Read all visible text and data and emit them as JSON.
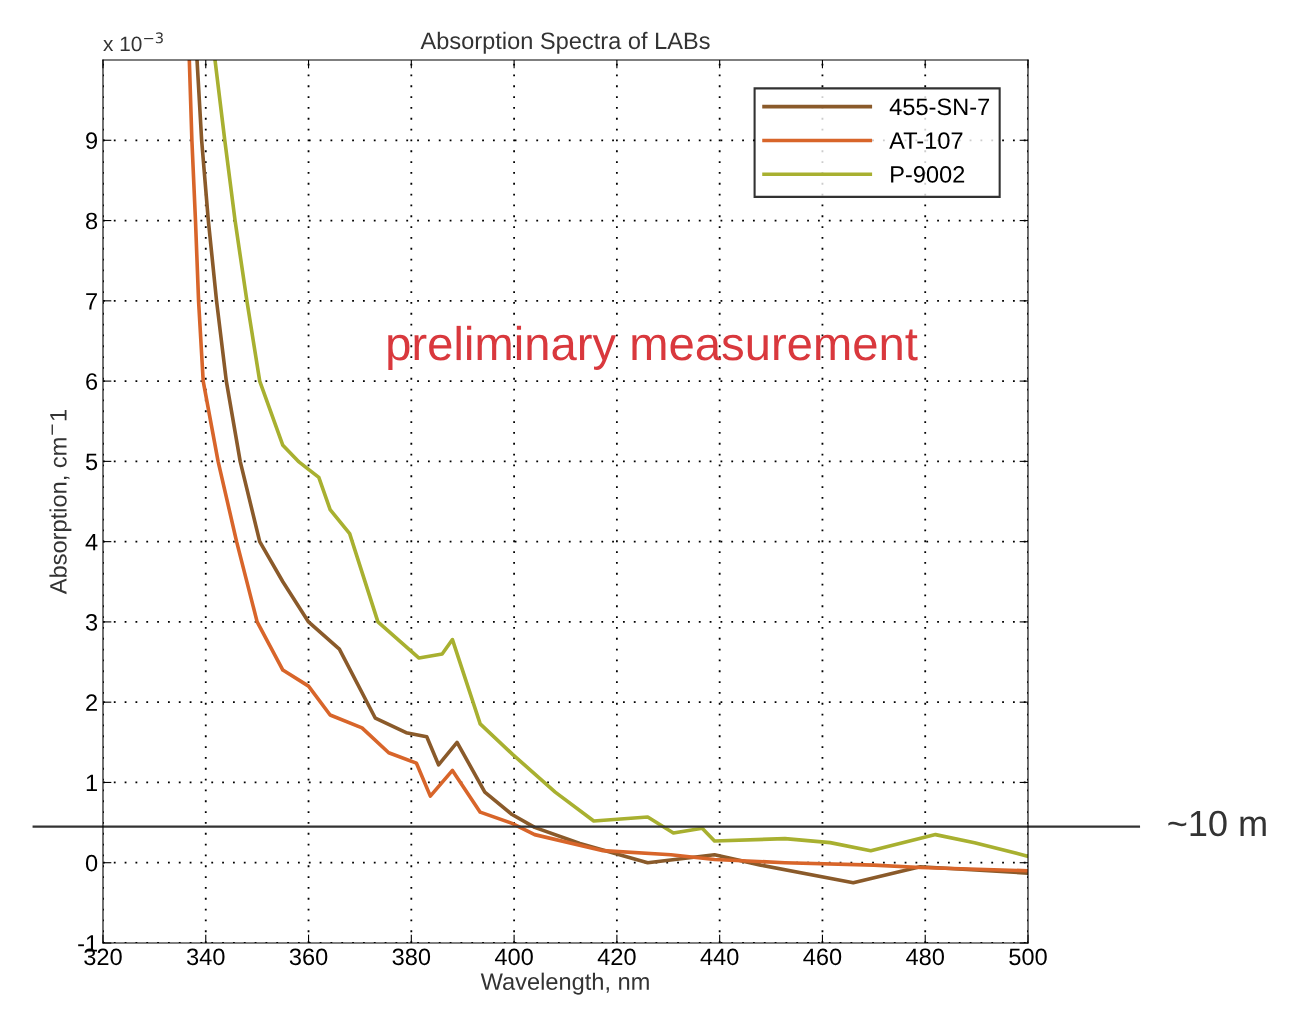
{
  "chart_data": {
    "type": "line",
    "title": "Absorption Spectra of LABs",
    "xlabel": "Wavelength, nm",
    "ylabel": "Absorption, cm$^{−}$1",
    "xlim": [
      320,
      500
    ],
    "xticks": [
      320,
      340,
      360,
      380,
      400,
      420,
      440,
      460,
      480,
      500
    ],
    "ylim": [
      -1,
      10
    ],
    "yticks": [
      -1,
      0,
      1,
      2,
      3,
      4,
      5,
      6,
      7,
      8,
      9
    ],
    "grid": true,
    "legend": "top right",
    "line_style": "solid",
    "marker": "none",
    "annotations": [
      "x 10$^{−3}$",
      "preliminary measurement"
    ],
    "ref_lines": [
      {
        "axis": "y",
        "value": 0.45,
        "label": "~10 m",
        "color": "#333333"
      }
    ],
    "series": [
      {
        "name": "455-SN-7",
        "color": "#8a5a2a",
        "x": [
          338.3,
          339.2,
          340.5,
          342.1,
          344,
          346.7,
          350.5,
          355,
          360,
          366,
          373,
          379,
          383,
          385.3,
          388.9,
          394.3,
          399.6,
          404,
          412.8,
          426,
          439,
          448,
          466,
          479,
          500
        ],
        "values": [
          10,
          9,
          8,
          7,
          6,
          5,
          4,
          3.5,
          3.0,
          2.66,
          1.8,
          1.62,
          1.57,
          1.22,
          1.5,
          0.88,
          0.6,
          0.44,
          0.24,
          0.0,
          0.1,
          -0.03,
          -0.25,
          -0.05,
          -0.13
        ]
      },
      {
        "name": "AT-107",
        "color": "#d8652a",
        "x": [
          336.8,
          337.3,
          338,
          338.6,
          339.5,
          342.4,
          346,
          350,
          355,
          360,
          364.2,
          370.4,
          375.6,
          381,
          383.7,
          388,
          393.4,
          399.6,
          404,
          417.3,
          430.5,
          439,
          452.7,
          470,
          479,
          500
        ],
        "values": [
          10,
          9,
          8,
          7,
          6,
          5,
          4,
          3,
          2.4,
          2.2,
          1.84,
          1.68,
          1.37,
          1.24,
          0.83,
          1.15,
          0.63,
          0.49,
          0.35,
          0.15,
          0.1,
          0.04,
          0.0,
          -0.03,
          -0.06,
          -0.1
        ]
      },
      {
        "name": "P-9002",
        "color": "#a8b030",
        "x": [
          341.8,
          343.7,
          345.7,
          348,
          350.5,
          355,
          358,
          362,
          364.2,
          368,
          373.5,
          381.5,
          386,
          388,
          393.4,
          399.7,
          408,
          415.5,
          426,
          431,
          436.6,
          439,
          452.7,
          461.5,
          469.4,
          482,
          489.6,
          500
        ],
        "values": [
          10,
          9,
          8,
          7,
          6,
          5.2,
          5.0,
          4.8,
          4.4,
          4.1,
          3.0,
          2.55,
          2.6,
          2.78,
          1.73,
          1.35,
          0.88,
          0.52,
          0.57,
          0.37,
          0.43,
          0.27,
          0.3,
          0.25,
          0.15,
          0.35,
          0.25,
          0.08
        ]
      }
    ]
  }
}
